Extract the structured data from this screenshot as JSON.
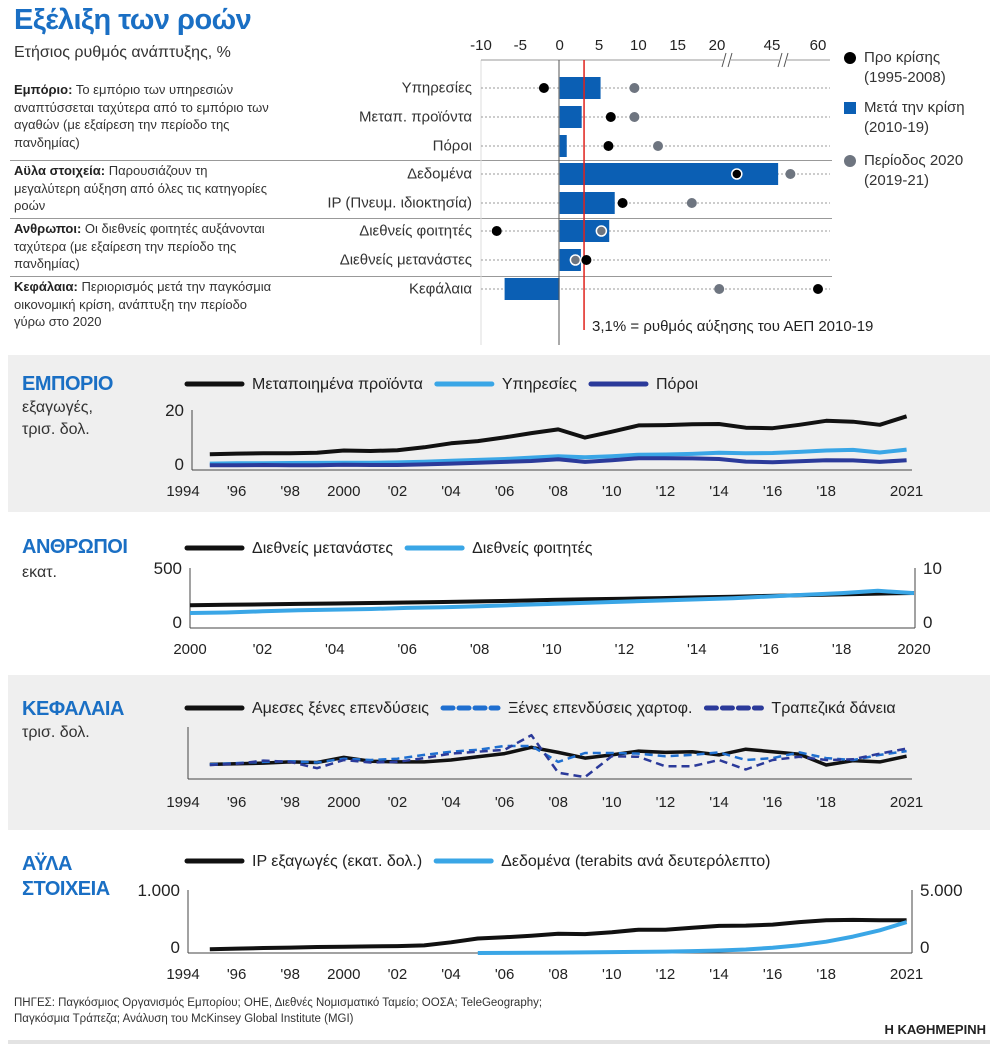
{
  "header": {
    "title": "Εξέλιξη των ροών",
    "subtitle": "Ετήσιος ρυθμός ανάπτυξης, %"
  },
  "notes": [
    {
      "label": "Εμπόριο:",
      "text": " Το εμπόριο των υπηρεσιών αναπτύσσεται ταχύτερα από το εμπόριο των αγαθών (με εξαίρεση την περίοδο της πανδημίας)"
    },
    {
      "label": "Αϋλα στοιχεία:",
      "text": " Παρουσιάζουν τη μεγαλύτερη αύξηση από όλες τις κατηγορίες ροών"
    },
    {
      "label": "Ανθρωποι:",
      "text": " Οι διεθνείς φοιτητές αυξάνονται ταχύτερα (με εξαίρεση την περίοδο της πανδημίας)"
    },
    {
      "label": "Κεφάλαια:",
      "text": " Περιορισμός μετά την παγκόσμια οικονομική κρίση, ανάπτυξη την περίοδο γύρω στο 2020"
    }
  ],
  "colors": {
    "accent": "#1a6fc4",
    "bar": "#0b5fb4",
    "pre_crisis": "#000000",
    "period_2020": "#6e7580",
    "gdp_line": "#e0221c",
    "light_blue": "#3aa6e6",
    "navy": "#2b3a9a",
    "portfolio": "#1f6fd0"
  },
  "chart_data": [
    {
      "type": "bar",
      "title": "Εξέλιξη των ροών",
      "subtitle": "Ετήσιος ρυθμός ανάπτυξης, %",
      "orientation": "horizontal",
      "axis_ticks": [
        "-10",
        "-5",
        "0",
        "5",
        "10",
        "15",
        "20",
        "45",
        "60"
      ],
      "axis_break": "20–45, 45–60",
      "xlim": [
        -10,
        60
      ],
      "categories": [
        "Υπηρεσίες",
        "Μεταπ. προϊόντα",
        "Πόροι",
        "Δεδομένα",
        "IP (Πνευμ. ιδιοκτησία)",
        "Διεθνείς φοιτητές",
        "Διεθνείς μετανάστες",
        "Κεφάλαια"
      ],
      "series": [
        {
          "name": "Μετά την κρίση",
          "period": "(2010-19)",
          "mark": "bar",
          "values": [
            5.2,
            2.8,
            0.9,
            47,
            7.0,
            6.3,
            2.7,
            -7.0
          ]
        },
        {
          "name": "Προ κρίσης",
          "period": "(1995-2008)",
          "mark": "dot",
          "values": [
            -2.0,
            6.5,
            6.2,
            29,
            8.0,
            -8.0,
            3.4,
            60
          ]
        },
        {
          "name": "Περίοδος 2020",
          "period": "(2019-21)",
          "mark": "dot",
          "values": [
            9.5,
            9.5,
            12.5,
            51,
            16.8,
            5.3,
            2.0,
            21
          ]
        }
      ],
      "reference_line": {
        "value": 3.1,
        "label": "3,1% = ρυθμός αύξησης του ΑΕΠ 2010-19"
      },
      "legend_position": "right",
      "grid": "dotted row lines"
    },
    {
      "type": "line",
      "title": "ΕΜΠΟΡΙΟ",
      "ylabel_lines": [
        "εξαγωγές,",
        "τρισ. δολ."
      ],
      "ylim": [
        0,
        20
      ],
      "yticks": [
        "20",
        "0"
      ],
      "xticks": [
        "1994",
        "'96",
        "'98",
        "2000",
        "'02",
        "'04",
        "'06",
        "'08",
        "'10",
        "'12",
        "'14",
        "'16",
        "'18",
        "2021"
      ],
      "xtick_years": [
        1994,
        1996,
        1998,
        2000,
        2002,
        2004,
        2006,
        2008,
        2010,
        2012,
        2014,
        2016,
        2018,
        2021
      ],
      "x_start": 1995,
      "series": [
        {
          "name": "Μεταποιημένα προϊόντα",
          "color": "#111111",
          "values": [
            4.5,
            4.7,
            4.8,
            4.8,
            5.0,
            5.8,
            5.6,
            5.9,
            6.9,
            8.3,
            9.1,
            10.4,
            11.9,
            13.2,
            10.3,
            12.4,
            14.6,
            14.7,
            15.0,
            15.1,
            13.8,
            13.6,
            14.8,
            16.2,
            15.9,
            14.8,
            17.8
          ]
        },
        {
          "name": "Υπηρεσίες",
          "color": "#3aa6e6",
          "values": [
            1.2,
            1.3,
            1.35,
            1.4,
            1.45,
            1.5,
            1.5,
            1.6,
            1.85,
            2.2,
            2.5,
            2.8,
            3.3,
            3.8,
            3.4,
            3.8,
            4.3,
            4.4,
            4.6,
            5.0,
            4.8,
            4.9,
            5.3,
            5.8,
            6.0,
            5.1,
            6.1
          ]
        },
        {
          "name": "Πόροι",
          "color": "#2b3a9a",
          "values": [
            0.6,
            0.6,
            0.7,
            0.6,
            0.6,
            0.8,
            0.7,
            0.7,
            0.9,
            1.2,
            1.5,
            1.8,
            2.1,
            2.7,
            1.8,
            2.4,
            3.1,
            3.1,
            3.0,
            2.8,
            1.9,
            1.7,
            2.0,
            2.4,
            2.3,
            1.8,
            2.4
          ]
        }
      ],
      "legend_position": "top"
    },
    {
      "type": "line",
      "title": "ΑΝΘΡΩΠΟΙ",
      "ylabel_lines": [
        "εκατ."
      ],
      "ylim": [
        0,
        500
      ],
      "y2lim": [
        0,
        10
      ],
      "yticks": [
        "500",
        "0"
      ],
      "y2ticks": [
        "10",
        "0"
      ],
      "xticks": [
        "2000",
        "'02",
        "'04",
        "'06",
        "'08",
        "'10",
        "'12",
        "'14",
        "'16",
        "'18",
        "2020"
      ],
      "xtick_years": [
        2000,
        2002,
        2004,
        2006,
        2008,
        2010,
        2012,
        2014,
        2016,
        2018,
        2020
      ],
      "x_start": 2000,
      "series": [
        {
          "name": "Διεθνείς μετανάστες",
          "axis": "left",
          "color": "#111111",
          "values": [
            173,
            177,
            181,
            185,
            189,
            193,
            197,
            202,
            207,
            212,
            220,
            226,
            231,
            236,
            242,
            248,
            255,
            262,
            268,
            275,
            281
          ]
        },
        {
          "name": "Διεθνείς φοιτητές",
          "axis": "right",
          "color": "#3aa6e6",
          "values": [
            2.1,
            2.2,
            2.4,
            2.6,
            2.7,
            2.8,
            3.0,
            3.1,
            3.3,
            3.5,
            3.7,
            3.9,
            4.1,
            4.3,
            4.5,
            4.7,
            5.0,
            5.3,
            5.6,
            6.0,
            5.6
          ]
        }
      ],
      "legend_position": "top"
    },
    {
      "type": "line",
      "title": "ΚΕΦΑΛΑΙΑ",
      "ylabel_lines": [
        "τρισ. δολ."
      ],
      "ylim": [
        -2.0,
        6.2
      ],
      "xticks": [
        "1994",
        "'96",
        "'98",
        "2000",
        "'02",
        "'04",
        "'06",
        "'08",
        "'10",
        "'12",
        "'14",
        "'16",
        "'18",
        "2021"
      ],
      "xtick_years": [
        1994,
        1996,
        1998,
        2000,
        2002,
        2004,
        2006,
        2008,
        2010,
        2012,
        2014,
        2016,
        2018,
        2021
      ],
      "x_start": 1995,
      "series": [
        {
          "name": "Αμεσες ξένες επενδύσεις",
          "color": "#111111",
          "dash": false,
          "values": [
            0.3,
            0.4,
            0.5,
            0.7,
            0.6,
            1.4,
            0.8,
            0.7,
            0.7,
            1.0,
            1.5,
            2.0,
            3.0,
            2.2,
            1.3,
            1.8,
            2.4,
            2.2,
            2.3,
            1.8,
            2.7,
            2.3,
            1.9,
            0.2,
            0.9,
            0.7,
            1.6
          ]
        },
        {
          "name": "Ξένες επενδύσεις χαρτοφ.",
          "color": "#1f6fd0",
          "dash": true,
          "values": [
            0.3,
            0.5,
            0.7,
            0.8,
            0.6,
            1.2,
            1.0,
            1.2,
            1.8,
            2.3,
            2.6,
            3.2,
            3.2,
            0.7,
            2.1,
            2.1,
            2.0,
            1.6,
            1.8,
            2.2,
            1.0,
            1.3,
            2.2,
            1.3,
            1.0,
            1.8,
            2.4
          ]
        },
        {
          "name": "Τραπεζικά δάνεια",
          "color": "#2b3a9a",
          "dash": true,
          "values": [
            0.2,
            0.4,
            0.9,
            0.7,
            -0.3,
            1.0,
            0.6,
            0.7,
            1.3,
            2.0,
            2.3,
            2.6,
            4.9,
            -1.0,
            -1.7,
            1.6,
            1.5,
            0.0,
            0.0,
            1.0,
            -0.5,
            1.0,
            1.5,
            1.0,
            1.1,
            2.0,
            2.8
          ]
        }
      ],
      "legend_position": "top"
    },
    {
      "type": "line",
      "title_lines": [
        "ΑΫΛΑ",
        "ΣΤΟΙΧΕΙΑ"
      ],
      "ylim": [
        0,
        1000
      ],
      "y2lim": [
        0,
        5000
      ],
      "yticks": [
        "1.000",
        "0"
      ],
      "y2ticks": [
        "5.000",
        "0"
      ],
      "xticks": [
        "1994",
        "'96",
        "'98",
        "2000",
        "'02",
        "'04",
        "'06",
        "'08",
        "'10",
        "'12",
        "'14",
        "'16",
        "'18",
        "2021"
      ],
      "xtick_years": [
        1994,
        1996,
        1998,
        2000,
        2002,
        2004,
        2006,
        2008,
        2010,
        2012,
        2014,
        2016,
        2018,
        2021
      ],
      "series": [
        {
          "name": "IP εξαγωγές (εκατ. δολ.)",
          "axis": "left",
          "color": "#111111",
          "x_start": 1995,
          "values": [
            60,
            70,
            80,
            85,
            95,
            100,
            105,
            110,
            120,
            170,
            230,
            250,
            275,
            305,
            300,
            330,
            370,
            370,
            400,
            430,
            435,
            450,
            490,
            520,
            525,
            520,
            520
          ]
        },
        {
          "name": "Δεδομένα (terabits ανά δευτερόλεπτο)",
          "axis": "right",
          "color": "#3aa6e6",
          "x_start": 2005,
          "values": [
            0,
            10,
            20,
            30,
            50,
            70,
            90,
            110,
            150,
            200,
            280,
            420,
            620,
            900,
            1300,
            1800,
            2450
          ]
        }
      ],
      "legend_position": "top"
    }
  ],
  "footer": {
    "sources_line1": "ΠΗΓΕΣ: Παγκόσμιος Οργανισμός Εμπορίου; ΟΗΕ, Διεθνές Νομισματικό Ταμείο; ΟΟΣΑ; TeleGeography;",
    "sources_line2": "Παγκόσμια Τράπεζα; Ανάλυση του McKinsey Global Institute (MGI)",
    "brand": "Η ΚΑΘΗΜΕΡΙΝΗ"
  }
}
